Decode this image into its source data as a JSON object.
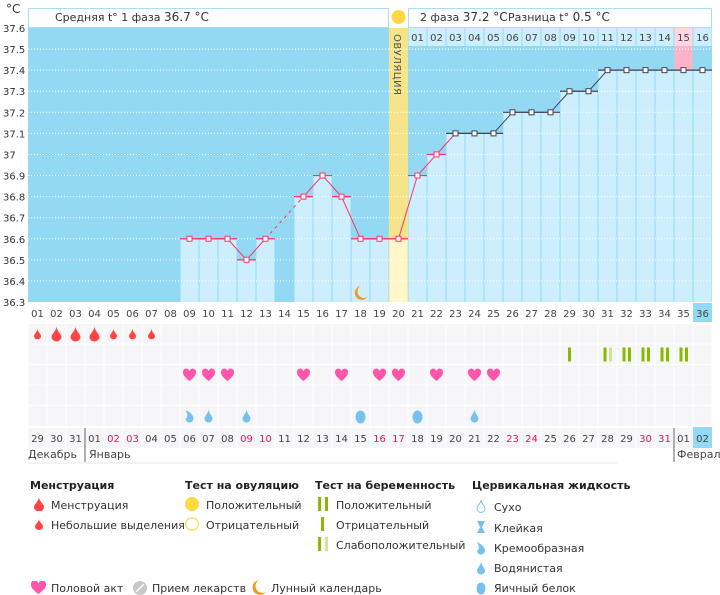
{
  "header": {
    "unit": "°C",
    "phase1_label": "Средняя t° 1 фаза",
    "phase1_value": "36.7 °C",
    "phase2_label": "2 фаза",
    "phase2_value": "37.2 °C",
    "diff_label": "Разница t°",
    "diff_value": "0.5 °C",
    "ovulation_label": "ОВУЛЯЦИЯ"
  },
  "colors": {
    "phase_bg": "#94d9f3",
    "bar": "#cdeefc",
    "ovulation": "#f5e48a",
    "ovulation_pale": "#fff6cc",
    "line": "#ff3366",
    "highlight_pink": "#ffb3c8",
    "menstruation": "#ff4444",
    "heart": "#ff55aa",
    "pregnancy": "#88bb00",
    "pregnancy_weak": "#cfe3a0",
    "fluid": "#77c1ee",
    "moon": "#f39a1d",
    "weekend": "#ee1155"
  },
  "chart_data": {
    "type": "line",
    "title": "",
    "ylim": [
      36.3,
      37.6
    ],
    "yticks": [
      "37.6",
      "37.5",
      "37.4",
      "37.3",
      "37.2",
      "37.1",
      "37",
      "36.9",
      "36.8",
      "36.7",
      "36.6",
      "36.5",
      "36.4",
      "36.3"
    ],
    "cycle_days": [
      "01",
      "02",
      "03",
      "04",
      "05",
      "06",
      "07",
      "08",
      "09",
      "10",
      "11",
      "12",
      "13",
      "14",
      "15",
      "16",
      "17",
      "18",
      "19",
      "20",
      "21",
      "22",
      "23",
      "24",
      "25",
      "26",
      "27",
      "28",
      "29",
      "30",
      "31",
      "32",
      "33",
      "34",
      "35",
      "36"
    ],
    "temperatures": [
      null,
      null,
      null,
      null,
      null,
      null,
      null,
      null,
      36.6,
      36.6,
      36.6,
      36.5,
      36.6,
      null,
      36.8,
      36.9,
      36.8,
      36.6,
      36.6,
      36.6,
      36.9,
      37.0,
      37.1,
      37.1,
      37.1,
      37.2,
      37.2,
      37.2,
      37.3,
      37.3,
      37.4,
      37.4,
      37.4,
      37.4,
      37.4,
      37.4
    ],
    "ovulation_day": 20,
    "current_day": 36,
    "moon_day": 18,
    "phase2_days": [
      "01",
      "02",
      "03",
      "04",
      "05",
      "06",
      "07",
      "08",
      "09",
      "10",
      "11",
      "12",
      "13",
      "14",
      "15",
      "16"
    ],
    "phase2_highlight_day": "15",
    "menstruation": {
      "1": "light",
      "2": "heavy",
      "3": "heavy",
      "4": "heavy",
      "5": "light",
      "6": "light",
      "7": "light"
    },
    "pregnancy_tests": {
      "29": "negative",
      "31": "weak",
      "32": "positive",
      "33": "positive",
      "34": "positive",
      "35": "positive"
    },
    "intercourse_days": [
      9,
      10,
      11,
      15,
      17,
      19,
      20,
      22,
      24,
      25
    ],
    "cervical_fluid": {
      "9": "creamy",
      "10": "watery",
      "12": "watery",
      "18": "egg-white",
      "21": "egg-white",
      "24": "watery"
    },
    "dates": [
      "29",
      "30",
      "31",
      "01",
      "02",
      "03",
      "04",
      "05",
      "06",
      "07",
      "08",
      "09",
      "10",
      "11",
      "12",
      "13",
      "14",
      "15",
      "16",
      "17",
      "18",
      "19",
      "20",
      "21",
      "22",
      "23",
      "24",
      "25",
      "26",
      "27",
      "28",
      "29",
      "30",
      "31",
      "01",
      "02"
    ],
    "weekend_date_indices": [
      5,
      6,
      12,
      13,
      19,
      20,
      26,
      27,
      33,
      34
    ],
    "months": [
      "Декабрь",
      "Январь",
      "Февраль"
    ]
  },
  "legend": {
    "menstruation": {
      "title": "Менструация",
      "items": [
        "Менструация",
        "Небольшие выделения"
      ]
    },
    "ovulation_test": {
      "title": "Тест на овуляцию",
      "items": [
        "Положительный",
        "Отрицательный"
      ]
    },
    "pregnancy_test": {
      "title": "Тест на беременность",
      "items": [
        "Положительный",
        "Отрицательный",
        "Слабоположительный"
      ]
    },
    "cervical_fluid": {
      "title": "Цервикальная жидкость",
      "items": [
        "Сухо",
        "Клейкая",
        "Кремообразная",
        "Водянистая",
        "Яичный белок"
      ]
    },
    "other": [
      "Половой акт",
      "Прием лекарств",
      "Лунный календарь"
    ]
  }
}
